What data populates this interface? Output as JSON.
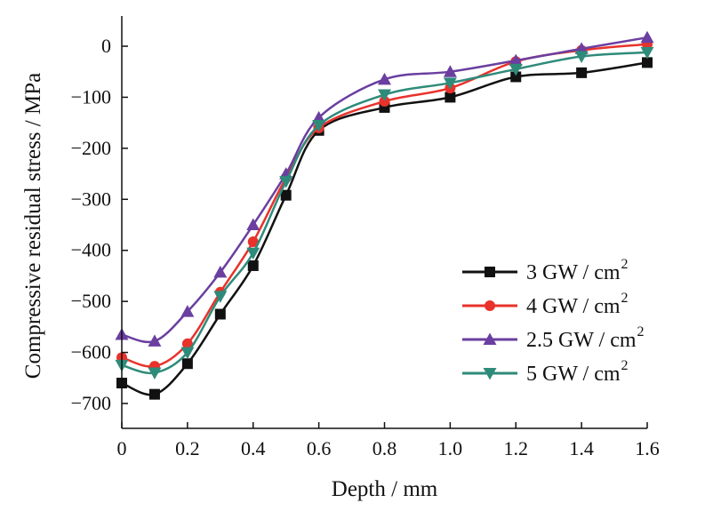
{
  "chart_data": {
    "type": "line",
    "xlabel": "Depth / mm",
    "ylabel": "Compressive residual stress / MPa",
    "xlim": [
      0,
      1.6
    ],
    "ylim": [
      -750,
      30
    ],
    "x_ticks": [
      0,
      0.2,
      0.4,
      0.6,
      0.8,
      1.0,
      1.2,
      1.4,
      1.6
    ],
    "x_tick_labels": [
      "0",
      "0.2",
      "0.4",
      "0.6",
      "0.8",
      "1.0",
      "1.2",
      "1.4",
      "1.6"
    ],
    "y_ticks": [
      0,
      -100,
      -200,
      -300,
      -400,
      -500,
      -600,
      -700
    ],
    "y_tick_labels": [
      "0",
      "−100",
      "−200",
      "−300",
      "−400",
      "−500",
      "−600",
      "−700"
    ],
    "grid": false,
    "legend_position": "lower-right",
    "x": [
      0,
      0.1,
      0.2,
      0.3,
      0.4,
      0.5,
      0.6,
      0.8,
      1.0,
      1.2,
      1.4,
      1.6
    ],
    "series": [
      {
        "name": "3 GW / cm",
        "name_superscript": "2",
        "color": "#111111",
        "marker": "square",
        "values": [
          -660,
          -682,
          -622,
          -525,
          -430,
          -292,
          -165,
          -120,
          -100,
          -60,
          -52,
          -32
        ]
      },
      {
        "name": "4 GW / cm",
        "name_superscript": "2",
        "color": "#e8322b",
        "marker": "circle",
        "values": [
          -610,
          -627,
          -583,
          -482,
          -383,
          -258,
          -160,
          -108,
          -82,
          -30,
          -8,
          4
        ]
      },
      {
        "name": "2.5 GW / cm",
        "name_superscript": "2",
        "color": "#6a3fa0",
        "marker": "triangle-up",
        "values": [
          -565,
          -578,
          -520,
          -443,
          -350,
          -250,
          -140,
          -65,
          -50,
          -28,
          -5,
          17
        ]
      },
      {
        "name": "5 GW / cm",
        "name_superscript": "2",
        "color": "#2e8b7a",
        "marker": "triangle-down",
        "values": [
          -625,
          -640,
          -600,
          -490,
          -405,
          -265,
          -155,
          -95,
          -72,
          -45,
          -20,
          -12
        ]
      }
    ]
  }
}
